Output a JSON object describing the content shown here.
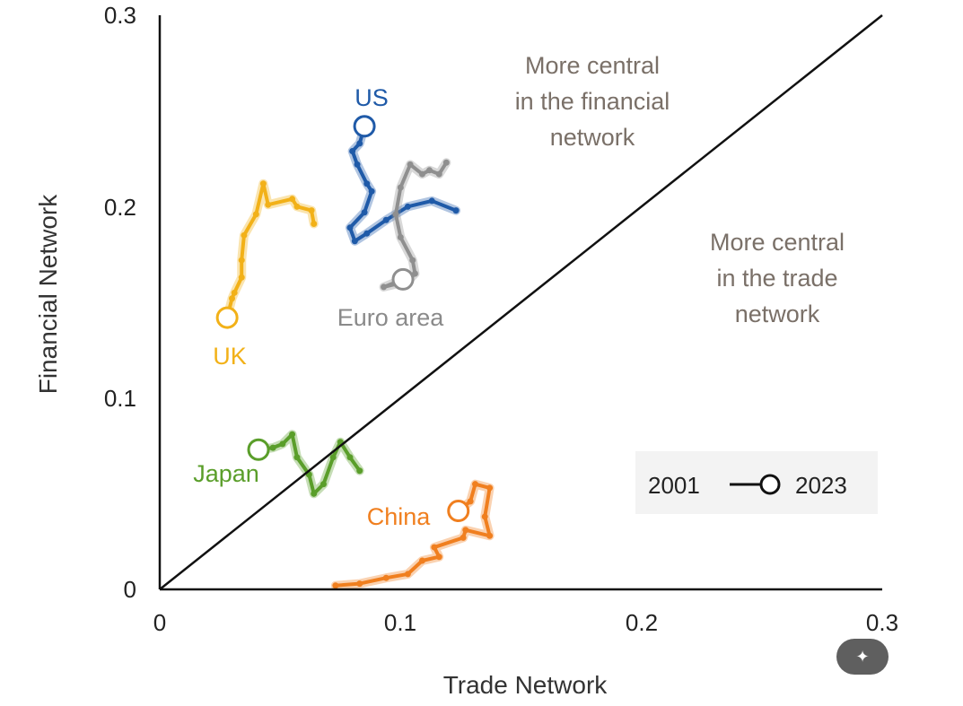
{
  "chart_data": {
    "type": "line",
    "xlabel": "Trade Network",
    "ylabel": "Financial Network",
    "xlim": [
      0,
      0.3
    ],
    "ylim": [
      0,
      0.3
    ],
    "x_ticks": [
      "0",
      "0.1",
      "0.2",
      "0.3"
    ],
    "y_ticks": [
      "0",
      "0.1",
      "0.2",
      "0.3"
    ],
    "grid": false,
    "reference_line": "45-degree diagonal y = x",
    "annotations": {
      "upper": [
        "More central",
        "in the financial",
        "network"
      ],
      "lower": [
        "More central",
        "in the trade",
        "network"
      ]
    },
    "legend": {
      "start": "2001",
      "end": "2023",
      "placement": "bottom-right"
    },
    "series": [
      {
        "name": "US",
        "color": "#1f5aa8",
        "points": [
          [
            0.123,
            0.198
          ],
          [
            0.113,
            0.203
          ],
          [
            0.103,
            0.2
          ],
          [
            0.094,
            0.193
          ],
          [
            0.086,
            0.186
          ],
          [
            0.081,
            0.182
          ],
          [
            0.079,
            0.189
          ],
          [
            0.085,
            0.197
          ],
          [
            0.088,
            0.208
          ],
          [
            0.086,
            0.212
          ],
          [
            0.082,
            0.222
          ],
          [
            0.08,
            0.229
          ],
          [
            0.083,
            0.233
          ],
          [
            0.085,
            0.242
          ]
        ]
      },
      {
        "name": "Euro area",
        "color": "#8f8f8f",
        "points": [
          [
            0.119,
            0.223
          ],
          [
            0.116,
            0.217
          ],
          [
            0.112,
            0.219
          ],
          [
            0.109,
            0.217
          ],
          [
            0.104,
            0.222
          ],
          [
            0.1,
            0.21
          ],
          [
            0.098,
            0.196
          ],
          [
            0.1,
            0.184
          ],
          [
            0.105,
            0.172
          ],
          [
            0.106,
            0.165
          ],
          [
            0.103,
            0.161
          ],
          [
            0.093,
            0.158
          ],
          [
            0.101,
            0.162
          ]
        ]
      },
      {
        "name": "UK",
        "color": "#f2b118",
        "points": [
          [
            0.064,
            0.191
          ],
          [
            0.063,
            0.198
          ],
          [
            0.057,
            0.2
          ],
          [
            0.055,
            0.204
          ],
          [
            0.045,
            0.201
          ],
          [
            0.043,
            0.212
          ],
          [
            0.04,
            0.196
          ],
          [
            0.035,
            0.185
          ],
          [
            0.034,
            0.172
          ],
          [
            0.034,
            0.163
          ],
          [
            0.031,
            0.155
          ],
          [
            0.03,
            0.152
          ],
          [
            0.028,
            0.142
          ]
        ]
      },
      {
        "name": "Japan",
        "color": "#5a9e2a",
        "points": [
          [
            0.083,
            0.062
          ],
          [
            0.079,
            0.069
          ],
          [
            0.075,
            0.077
          ],
          [
            0.072,
            0.069
          ],
          [
            0.068,
            0.055
          ],
          [
            0.064,
            0.05
          ],
          [
            0.062,
            0.06
          ],
          [
            0.057,
            0.069
          ],
          [
            0.055,
            0.081
          ],
          [
            0.051,
            0.076
          ],
          [
            0.047,
            0.074
          ],
          [
            0.041,
            0.073
          ]
        ]
      },
      {
        "name": "China",
        "color": "#f07f1f",
        "points": [
          [
            0.073,
            0.002
          ],
          [
            0.083,
            0.003
          ],
          [
            0.094,
            0.006
          ],
          [
            0.103,
            0.008
          ],
          [
            0.109,
            0.015
          ],
          [
            0.116,
            0.017
          ],
          [
            0.114,
            0.022
          ],
          [
            0.126,
            0.027
          ],
          [
            0.127,
            0.031
          ],
          [
            0.137,
            0.028
          ],
          [
            0.135,
            0.038
          ],
          [
            0.137,
            0.053
          ],
          [
            0.131,
            0.055
          ],
          [
            0.129,
            0.046
          ],
          [
            0.124,
            0.041
          ]
        ]
      }
    ]
  },
  "ui": {
    "magic_button_icon": "magic-wand-icon"
  }
}
